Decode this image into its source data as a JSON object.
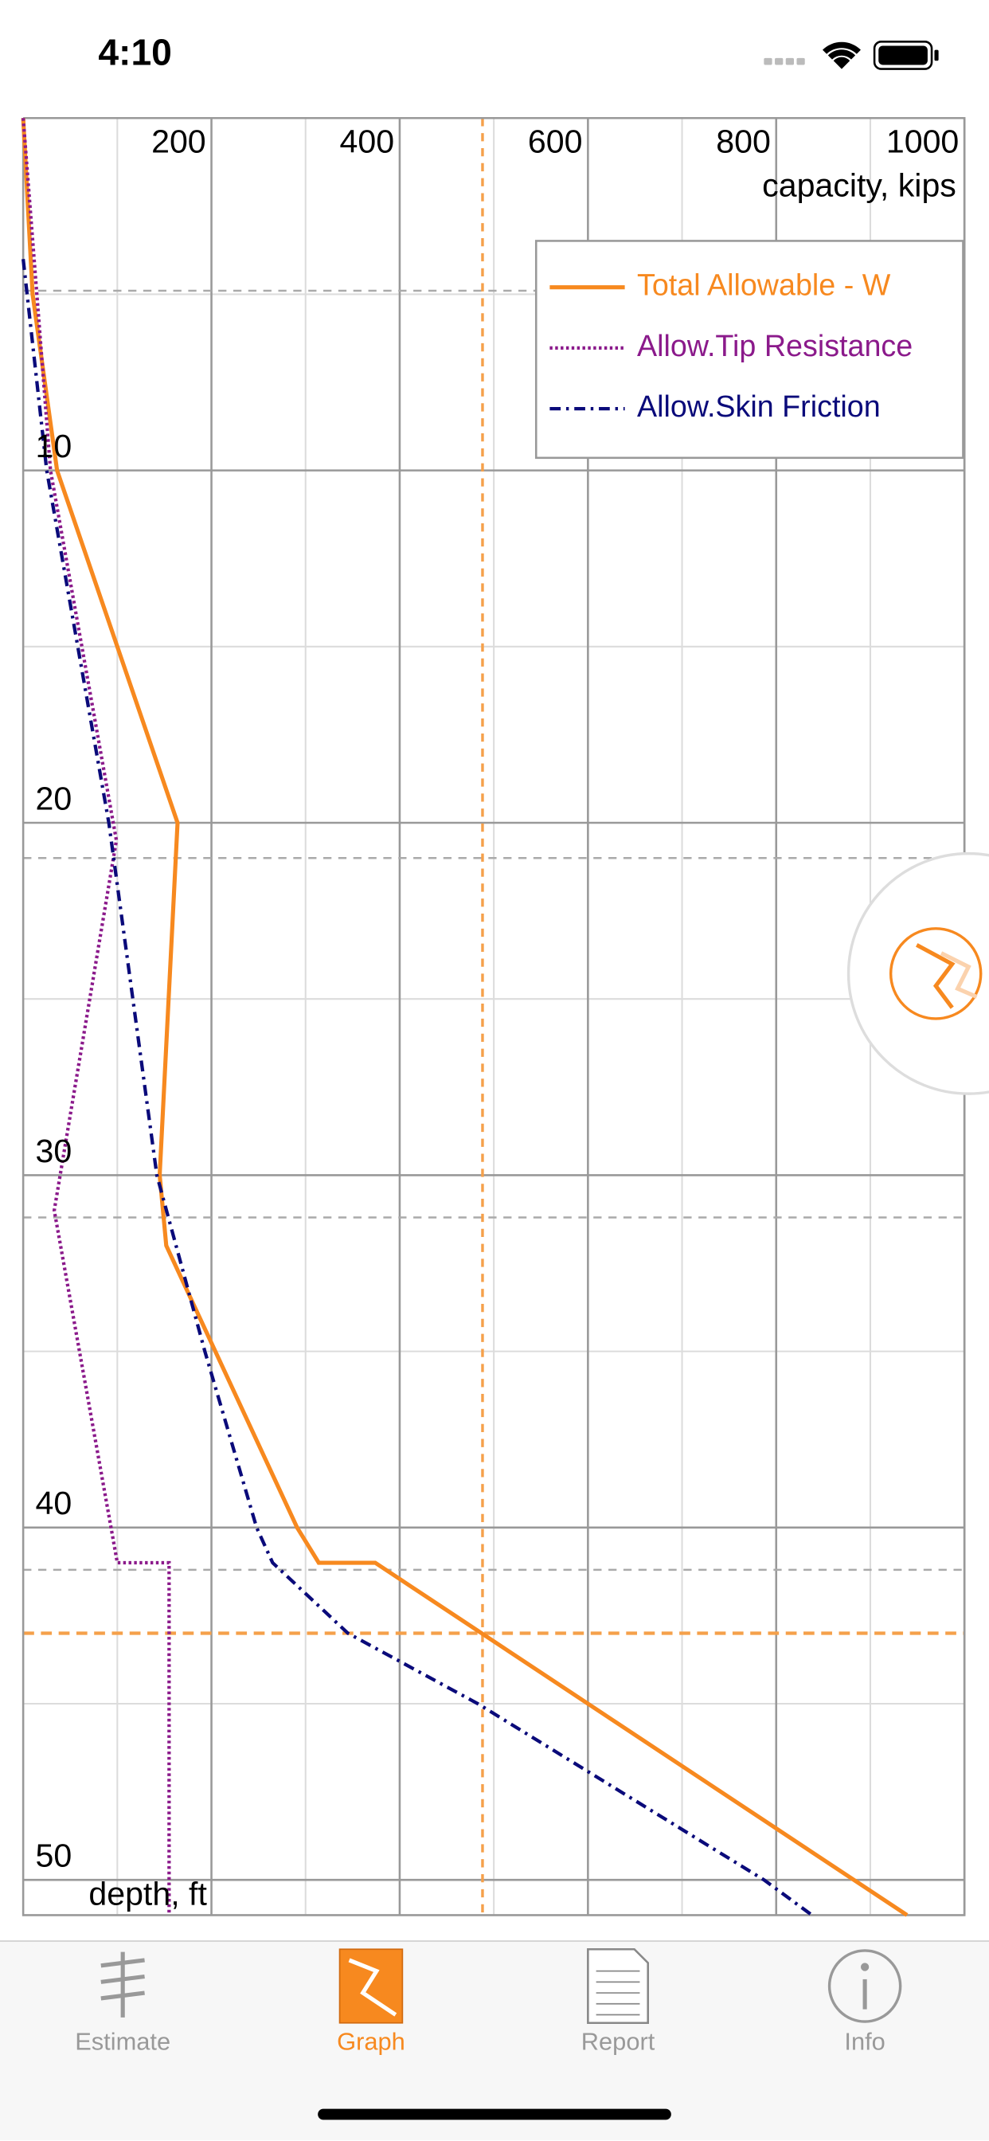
{
  "status_bar": {
    "time": "4:10"
  },
  "chart_data": {
    "type": "line",
    "x_label": "capacity, kips",
    "y_label": "depth, ft",
    "xlim": [
      0,
      1000
    ],
    "ylim": [
      0,
      51
    ],
    "y_inverted": true,
    "xticks": [
      200,
      400,
      600,
      800,
      1000
    ],
    "yticks": [
      10,
      20,
      30,
      40,
      50
    ],
    "xminor": [
      100,
      300,
      500,
      700,
      900
    ],
    "yminor": [
      5,
      15,
      25,
      35,
      45
    ],
    "grid": true,
    "legend": "upper right",
    "layer_depths": [
      4.9,
      21,
      31.2,
      41.2
    ],
    "reference_capacity": 488,
    "reference_depth": 43,
    "reference_color": "#f5a04a",
    "series": [
      {
        "name": "Total Allowable - W",
        "color": "#f7891f",
        "style": "solid",
        "x": [
          0,
          10,
          36,
          164,
          145,
          152,
          291,
          314,
          374,
          939
        ],
        "y": [
          0,
          5,
          10,
          20,
          30,
          32,
          40,
          41,
          41,
          51
        ]
      },
      {
        "name": "Allow.Tip Resistance",
        "color": "#8b1a8b",
        "style": "dotted",
        "x": [
          0,
          29,
          99,
          33,
          100,
          155,
          155
        ],
        "y": [
          0,
          10,
          20.5,
          31,
          41,
          41,
          51
        ]
      },
      {
        "name": "Allow.Skin Friction",
        "color": "#0a0a7a",
        "style": "dashdot",
        "x": [
          0,
          25,
          91,
          142,
          193,
          248,
          265,
          345,
          483,
          787,
          838
        ],
        "y": [
          4,
          10,
          20,
          30,
          35,
          40,
          41,
          43,
          45,
          50,
          51
        ]
      }
    ]
  },
  "tabs": [
    {
      "label": "Estimate",
      "selected": false
    },
    {
      "label": "Graph",
      "selected": true
    },
    {
      "label": "Report",
      "selected": false
    },
    {
      "label": "Info",
      "selected": false
    }
  ]
}
